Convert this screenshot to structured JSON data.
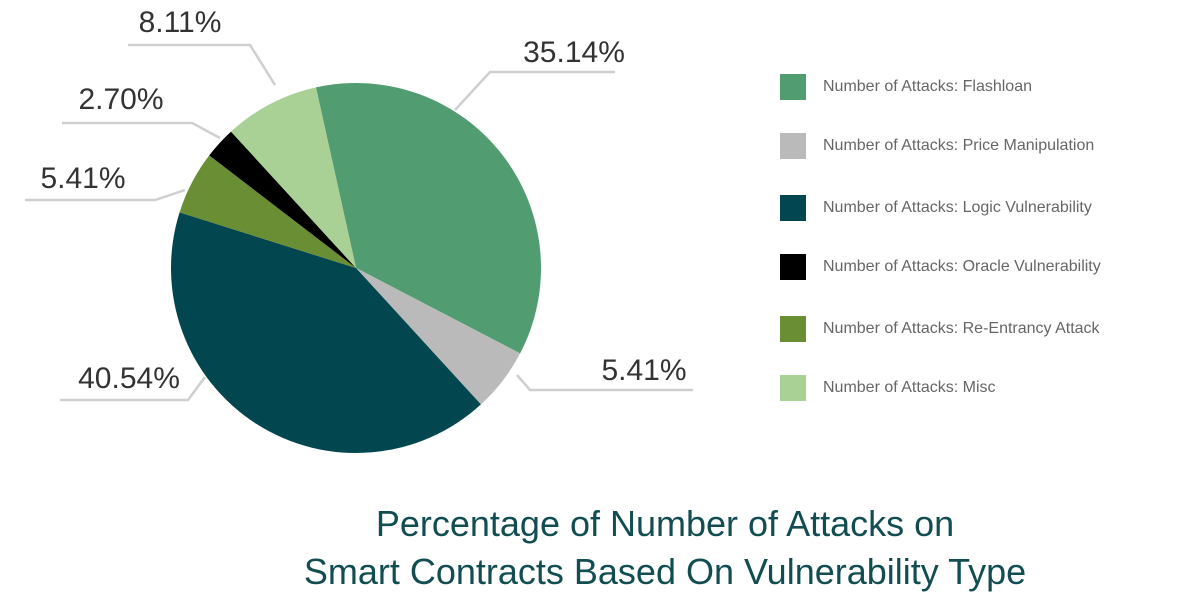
{
  "chart_data": {
    "type": "pie",
    "title": [
      "Percentage of Number of Attacks on",
      "Smart Contracts Based On Vulnerability Type"
    ],
    "slices": [
      {
        "label": "Number of Attacks: Flashloan",
        "value": 35.14,
        "data_label": "35.14%",
        "color": "#529c72"
      },
      {
        "label": "Number of Attacks: Price Manipulation",
        "value": 5.41,
        "data_label": "5.41%",
        "color": "#bababa"
      },
      {
        "label": "Number of Attacks: Logic Vulnerability",
        "value": 40.54,
        "data_label": "40.54%",
        "color": "#02474f"
      },
      {
        "label": "Number of Attacks: Re-Entrancy Attack",
        "value": 5.41,
        "data_label": "5.41%",
        "color": "#6a8e33"
      },
      {
        "label": "Number of Attacks: Oracle Vulnerability",
        "value": 2.7,
        "data_label": "2.70%",
        "color": "#000000"
      },
      {
        "label": "Number of Attacks: Misc",
        "value": 8.11,
        "data_label": "8.11%",
        "color": "#a9d095"
      }
    ],
    "legend_order": [
      0,
      1,
      2,
      4,
      3,
      5
    ],
    "legend_position": "right"
  }
}
